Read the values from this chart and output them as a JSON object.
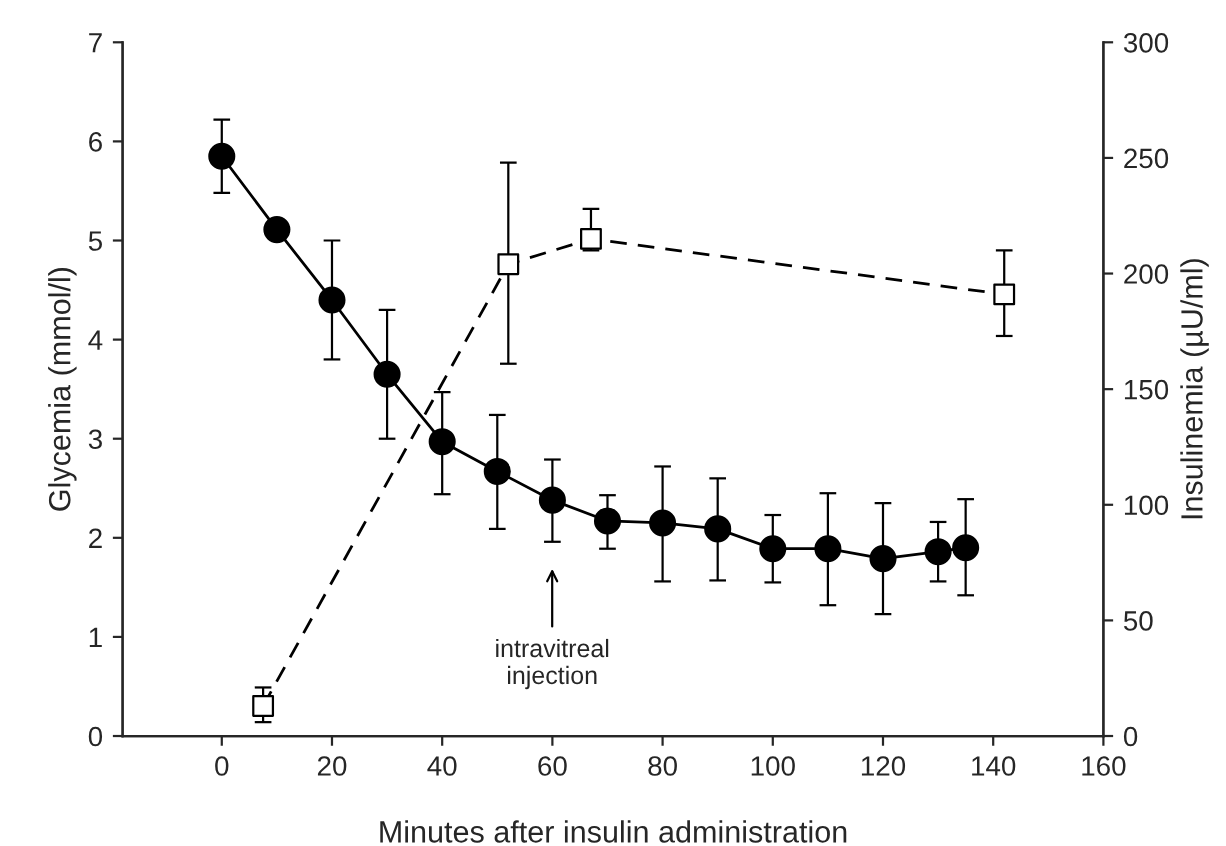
{
  "chart_data": {
    "type": "line",
    "xlabel": "Minutes after insulin administration",
    "ylabel": "Glycemia (mmol/l)",
    "y2label": "Insulinemia (µU/ml)",
    "xlim": [
      -18,
      160
    ],
    "xticks": [
      0,
      20,
      40,
      60,
      80,
      100,
      120,
      140,
      160
    ],
    "ylim": [
      0,
      7
    ],
    "yticks": [
      0,
      1,
      2,
      3,
      4,
      5,
      6,
      7
    ],
    "y2lim": [
      0,
      300
    ],
    "y2ticks": [
      0,
      50,
      100,
      150,
      200,
      250,
      300
    ],
    "grid": false,
    "legend": false,
    "annotations": [
      "intravitreal\ninjection"
    ],
    "series": [
      {
        "color": "#000000",
        "marker": "circle",
        "line_style": "solid",
        "x": [
          0,
          10,
          20,
          30,
          40,
          50,
          60,
          70,
          80,
          90,
          100,
          110,
          120,
          130,
          135
        ],
        "values": [
          5.85,
          5.11,
          4.4,
          3.65,
          2.97,
          2.67,
          2.38,
          2.17,
          2.15,
          2.09,
          1.89,
          1.89,
          1.79,
          1.86,
          1.9
        ],
        "errors": [
          [
            5.48,
            6.22
          ],
          [
            5.03,
            5.19
          ],
          [
            3.8,
            5.0
          ],
          [
            3.0,
            4.3
          ],
          [
            2.44,
            3.47
          ],
          [
            2.09,
            3.24
          ],
          [
            1.96,
            2.79
          ],
          [
            1.89,
            2.43
          ],
          [
            1.56,
            2.72
          ],
          [
            1.57,
            2.6
          ],
          [
            1.55,
            2.23
          ],
          [
            1.32,
            2.45
          ],
          [
            1.23,
            2.35
          ],
          [
            1.56,
            2.16
          ],
          [
            1.42,
            2.39
          ]
        ]
      },
      {
        "color": "#000000",
        "marker": "square",
        "line_style": "dashed",
        "axis": "y2",
        "x": [
          7.5,
          52,
          67,
          142
        ],
        "values": [
          13,
          204,
          215,
          191
        ],
        "errors": [
          [
            6,
            21
          ],
          [
            161,
            248
          ],
          [
            210,
            228
          ],
          [
            173,
            210
          ]
        ]
      }
    ]
  }
}
